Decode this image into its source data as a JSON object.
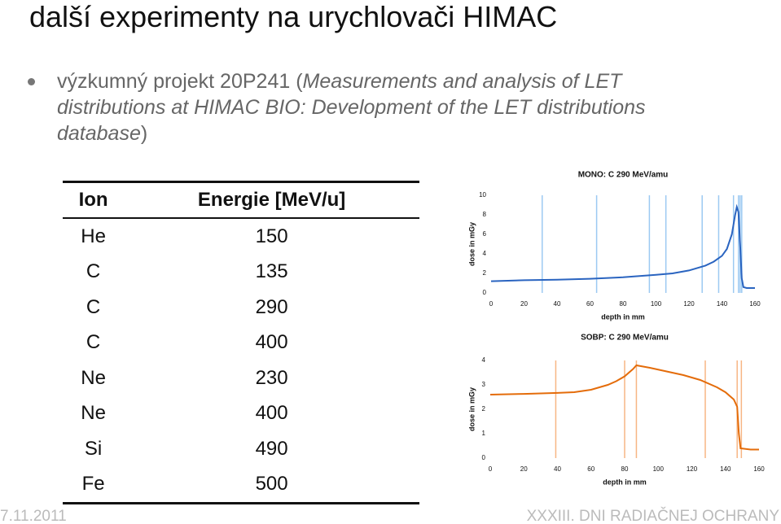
{
  "title": "další experimenty na urychlovači HIMAC",
  "bullet": [
    "výzkumný projekt 20P241 (",
    "Measurements and analysis of LET distributions at HIMAC BIO: Development of the LET distributions database",
    ")"
  ],
  "table": {
    "header": [
      "Ion",
      "Energie [MeV/u]"
    ],
    "rows": [
      [
        "He",
        150
      ],
      [
        "C",
        135
      ],
      [
        "C",
        290
      ],
      [
        "C",
        400
      ],
      [
        "Ne",
        230
      ],
      [
        "Ne",
        400
      ],
      [
        "Si",
        490
      ],
      [
        "Fe",
        500
      ]
    ]
  },
  "chart_data": [
    {
      "type": "line",
      "title": "MONO: C 290 MeV/amu",
      "x_label": "depth in mm",
      "y_label": "dose in mGy",
      "xlim": [
        0,
        160
      ],
      "xticks": [
        0,
        20,
        40,
        60,
        80,
        100,
        120,
        140,
        160
      ],
      "ylim": [
        0,
        10
      ],
      "yticks": [
        0,
        2,
        4,
        6,
        8,
        10
      ],
      "markers": [
        31,
        64,
        96,
        106,
        128,
        138,
        147,
        150,
        151,
        152
      ],
      "marker_color": "#9cc9f2",
      "series": [
        {
          "color": "#2a64c0",
          "x": [
            0,
            20,
            40,
            60,
            80,
            100,
            110,
            120,
            130,
            135,
            140,
            143,
            146,
            148,
            149,
            150,
            151,
            152,
            153,
            155,
            160
          ],
          "values": [
            1.2,
            1.3,
            1.35,
            1.45,
            1.6,
            1.85,
            2.0,
            2.3,
            2.8,
            3.2,
            3.8,
            4.5,
            6.0,
            8.0,
            8.8,
            8.3,
            5.0,
            1.5,
            0.6,
            0.5,
            0.5
          ]
        }
      ]
    },
    {
      "type": "line",
      "title": "SOBP: C 290 MeV/amu",
      "x_label": "depth in mm",
      "y_label": "dose in mGy",
      "xlim": [
        0,
        160
      ],
      "xticks": [
        0,
        20,
        40,
        60,
        80,
        100,
        120,
        140,
        160
      ],
      "ylim": [
        0,
        4
      ],
      "yticks": [
        0,
        1,
        2,
        3,
        4
      ],
      "markers": [
        39,
        80,
        87,
        128,
        147,
        149.5
      ],
      "marker_color": "#f7b684",
      "series": [
        {
          "color": "#e46c0a",
          "x": [
            0,
            20,
            40,
            50,
            60,
            70,
            75,
            80,
            85,
            87,
            95,
            105,
            115,
            125,
            135,
            140,
            145,
            147,
            148,
            149,
            155,
            160
          ],
          "values": [
            2.6,
            2.63,
            2.67,
            2.7,
            2.8,
            3.0,
            3.15,
            3.35,
            3.65,
            3.8,
            3.7,
            3.55,
            3.4,
            3.2,
            2.9,
            2.7,
            2.4,
            2.1,
            1.0,
            0.4,
            0.35,
            0.35
          ]
        }
      ]
    }
  ],
  "footer": {
    "date": "7.11.2011",
    "event": "XXXIII. DNI RADIAČNEJ OCHRANY"
  }
}
